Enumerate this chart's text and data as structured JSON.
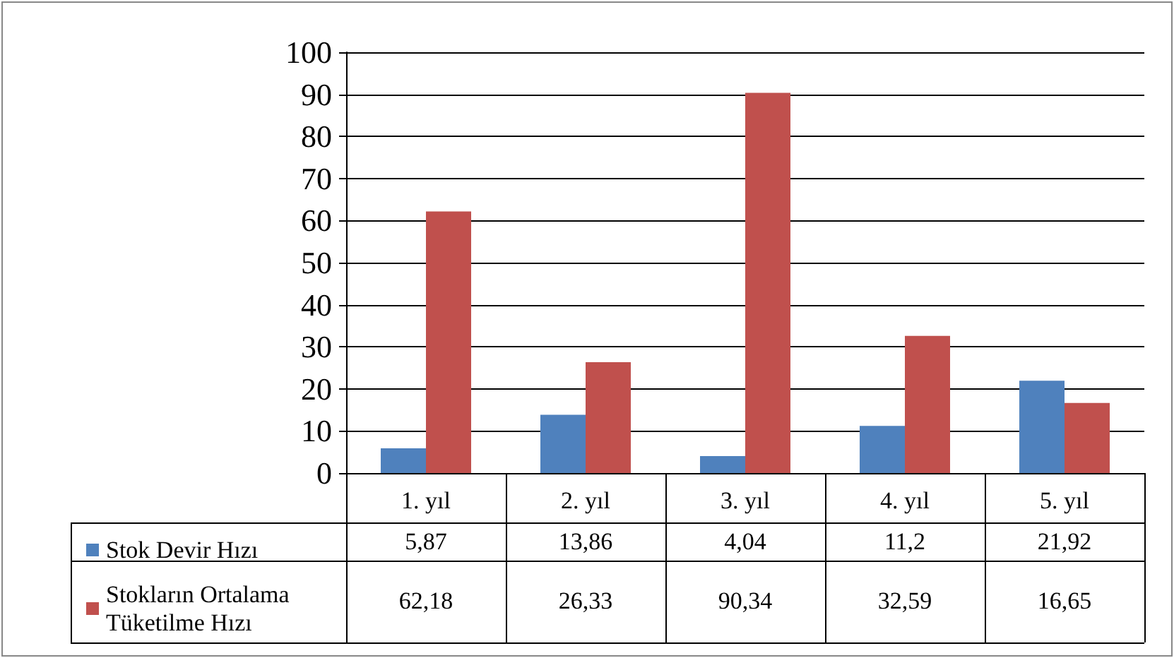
{
  "chart_data": {
    "type": "bar",
    "categories": [
      "1. yıl",
      "2. yıl",
      "3. yıl",
      "4. yıl",
      "5. yıl"
    ],
    "series": [
      {
        "name": "Stok Devir Hızı",
        "color": "#4f81bd",
        "values": [
          5.87,
          13.86,
          4.04,
          11.2,
          21.92
        ],
        "value_labels": [
          "5,87",
          "13,86",
          "4,04",
          "11,2",
          "21,92"
        ]
      },
      {
        "name": "Stokların Ortalama Tüketilme Hızı",
        "color": "#c0504d",
        "values": [
          62.18,
          26.33,
          90.34,
          32.59,
          16.65
        ],
        "value_labels": [
          "62,18",
          "26,33",
          "90,34",
          "32,59",
          "16,65"
        ]
      }
    ],
    "ylim": [
      0,
      100
    ],
    "yticks": [
      0,
      10,
      20,
      30,
      40,
      50,
      60,
      70,
      80,
      90,
      100
    ],
    "grid": "y",
    "legend": "bottom left"
  }
}
